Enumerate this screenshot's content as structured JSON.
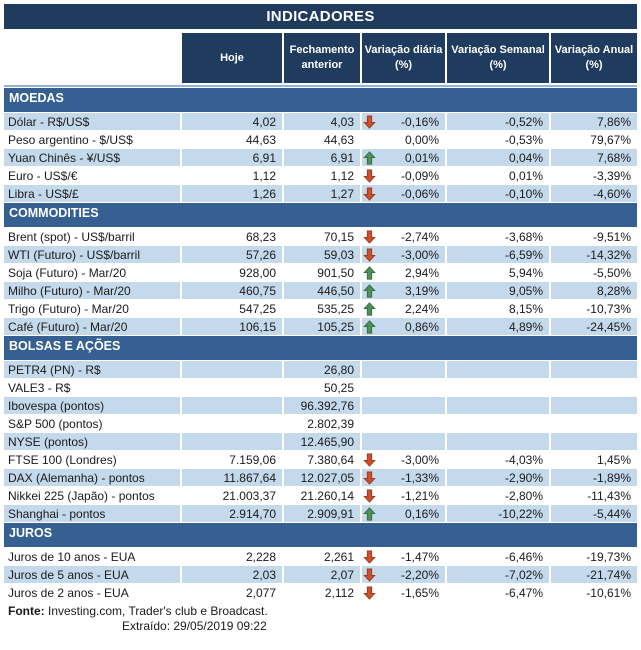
{
  "title": "INDICADORES",
  "columns": [
    "Hoje",
    "Fechamento\nanterior",
    "Variação diária\n(%)",
    "Variação Semanal\n(%)",
    "Variação Anual\n(%)"
  ],
  "colors": {
    "header_bg": "#1F3B5E",
    "section_bg": "#366092",
    "row_shaded": "#C5D9EC",
    "topline": "#95B3D7",
    "arrow_up": "#4E9158",
    "arrow_up_border": "#2E6B3E",
    "arrow_down": "#CC4E2B",
    "arrow_down_border": "#96391D"
  },
  "sections": [
    {
      "name": "MOEDAS",
      "first_row_shaded": true,
      "rows": [
        {
          "label": "Dólar - R$/US$",
          "hoje": "4,02",
          "fechamento": "4,03",
          "arrow": "down",
          "var_diaria": "-0,16%",
          "var_semanal": "-0,52%",
          "var_anual": "7,86%"
        },
        {
          "label": "Peso argentino - $/US$",
          "hoje": "44,63",
          "fechamento": "44,63",
          "arrow": "",
          "var_diaria": "0,00%",
          "var_semanal": "-0,53%",
          "var_anual": "79,67%"
        },
        {
          "label": "Yuan Chinês - ¥/US$",
          "hoje": "6,91",
          "fechamento": "6,91",
          "arrow": "up",
          "var_diaria": "0,01%",
          "var_semanal": "0,04%",
          "var_anual": "7,68%"
        },
        {
          "label": "Euro - US$/€",
          "hoje": "1,12",
          "fechamento": "1,12",
          "arrow": "down",
          "var_diaria": "-0,09%",
          "var_semanal": "0,01%",
          "var_anual": "-3,39%"
        },
        {
          "label": "Libra - US$/£",
          "hoje": "1,26",
          "fechamento": "1,27",
          "arrow": "down",
          "var_diaria": "-0,06%",
          "var_semanal": "-0,10%",
          "var_anual": "-4,60%"
        }
      ]
    },
    {
      "name": "COMMODITIES",
      "first_row_shaded": false,
      "rows": [
        {
          "label": "Brent (spot) - US$/barril",
          "hoje": "68,23",
          "fechamento": "70,15",
          "arrow": "down",
          "var_diaria": "-2,74%",
          "var_semanal": "-3,68%",
          "var_anual": "-9,51%"
        },
        {
          "label": "WTI (Futuro) - US$/barril",
          "hoje": "57,26",
          "fechamento": "59,03",
          "arrow": "down",
          "var_diaria": "-3,00%",
          "var_semanal": "-6,59%",
          "var_anual": "-14,32%"
        },
        {
          "label": "Soja (Futuro) - Mar/20",
          "hoje": "928,00",
          "fechamento": "901,50",
          "arrow": "up",
          "var_diaria": "2,94%",
          "var_semanal": "5,94%",
          "var_anual": "-5,50%"
        },
        {
          "label": "Milho (Futuro) - Mar/20",
          "hoje": "460,75",
          "fechamento": "446,50",
          "arrow": "up",
          "var_diaria": "3,19%",
          "var_semanal": "9,05%",
          "var_anual": "8,28%"
        },
        {
          "label": "Trigo (Futuro) - Mar/20",
          "hoje": "547,25",
          "fechamento": "535,25",
          "arrow": "up",
          "var_diaria": "2,24%",
          "var_semanal": "8,15%",
          "var_anual": "-10,73%"
        },
        {
          "label": "Café (Futuro) - Mar/20",
          "hoje": "106,15",
          "fechamento": "105,25",
          "arrow": "up",
          "var_diaria": "0,86%",
          "var_semanal": "4,89%",
          "var_anual": "-24,45%"
        }
      ]
    },
    {
      "name": "BOLSAS E AÇÕES",
      "first_row_shaded": true,
      "rows": [
        {
          "label": "PETR4 (PN) - R$",
          "hoje": "",
          "fechamento": "26,80",
          "arrow": "",
          "var_diaria": "",
          "var_semanal": "",
          "var_anual": ""
        },
        {
          "label": "VALE3 - R$",
          "hoje": "",
          "fechamento": "50,25",
          "arrow": "",
          "var_diaria": "",
          "var_semanal": "",
          "var_anual": ""
        },
        {
          "label": "Ibovespa (pontos)",
          "hoje": "",
          "fechamento": "96.392,76",
          "arrow": "",
          "var_diaria": "",
          "var_semanal": "",
          "var_anual": ""
        },
        {
          "label": "S&P 500 (pontos)",
          "hoje": "",
          "fechamento": "2.802,39",
          "arrow": "",
          "var_diaria": "",
          "var_semanal": "",
          "var_anual": ""
        },
        {
          "label": "NYSE (pontos)",
          "hoje": "",
          "fechamento": "12.465,90",
          "arrow": "",
          "var_diaria": "",
          "var_semanal": "",
          "var_anual": ""
        },
        {
          "label": "FTSE 100 (Londres)",
          "hoje": "7.159,06",
          "fechamento": "7.380,64",
          "arrow": "down",
          "var_diaria": "-3,00%",
          "var_semanal": "-4,03%",
          "var_anual": "1,45%"
        },
        {
          "label": "DAX (Alemanha) - pontos",
          "hoje": "11.867,64",
          "fechamento": "12.027,05",
          "arrow": "down",
          "var_diaria": "-1,33%",
          "var_semanal": "-2,90%",
          "var_anual": "-1,89%"
        },
        {
          "label": "Nikkei 225 (Japão) - pontos",
          "hoje": "21.003,37",
          "fechamento": "21.260,14",
          "arrow": "down",
          "var_diaria": "-1,21%",
          "var_semanal": "-2,80%",
          "var_anual": "-11,43%"
        },
        {
          "label": "Shanghai - pontos",
          "hoje": "2.914,70",
          "fechamento": "2.909,91",
          "arrow": "up",
          "var_diaria": "0,16%",
          "var_semanal": "-10,22%",
          "var_anual": "-5,44%"
        }
      ]
    },
    {
      "name": "JUROS",
      "first_row_shaded": false,
      "rows": [
        {
          "label": "Juros de 10 anos - EUA",
          "hoje": "2,228",
          "fechamento": "2,261",
          "arrow": "down",
          "var_diaria": "-1,47%",
          "var_semanal": "-6,46%",
          "var_anual": "-19,73%"
        },
        {
          "label": "Juros de 5 anos - EUA",
          "hoje": "2,03",
          "fechamento": "2,07",
          "arrow": "down",
          "var_diaria": "-2,20%",
          "var_semanal": "-7,02%",
          "var_anual": "-21,74%"
        },
        {
          "label": "Juros de 2 anos - EUA",
          "hoje": "2,077",
          "fechamento": "2,112",
          "arrow": "down",
          "var_diaria": "-1,65%",
          "var_semanal": "-6,47%",
          "var_anual": "-10,61%"
        }
      ]
    }
  ],
  "footer": {
    "source_label": "Fonte:",
    "source_text": " Investing.com, Trader's club e Broadcast.",
    "extracted": "Extraído: 29/05/2019 09:22"
  }
}
